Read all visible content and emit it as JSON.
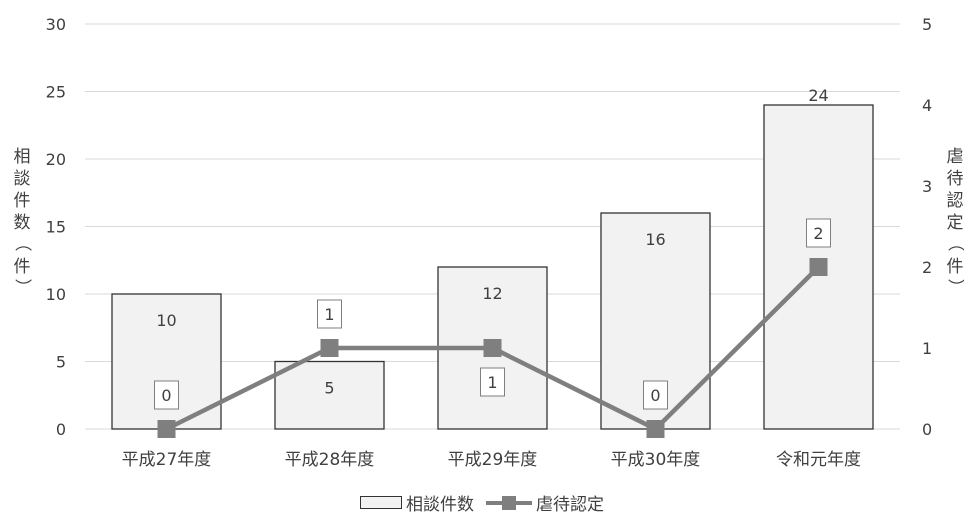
{
  "chart_data": {
    "type": "bar",
    "categories": [
      "平成27年度",
      "平成28年度",
      "平成29年度",
      "平成30年度",
      "令和元年度"
    ],
    "series": [
      {
        "name": "相談件数",
        "type": "bar",
        "axis": "left",
        "values": [
          10,
          5,
          12,
          16,
          24
        ],
        "color": "#f2f2f2",
        "stroke": "#333333"
      },
      {
        "name": "虐待認定",
        "type": "line",
        "axis": "right",
        "marker": "square",
        "values": [
          0,
          1,
          1,
          0,
          2
        ],
        "color": "#7f7f7f"
      }
    ],
    "ylabel": "相談件数（件）",
    "y2label": "虐待認定（件）",
    "ylim": [
      0,
      30
    ],
    "yticks": [
      0,
      5,
      10,
      15,
      20,
      25,
      30
    ],
    "y2lim": [
      0,
      5
    ],
    "y2ticks": [
      0,
      1,
      2,
      3,
      4,
      5
    ],
    "grid": true,
    "legend_position": "bottom"
  }
}
